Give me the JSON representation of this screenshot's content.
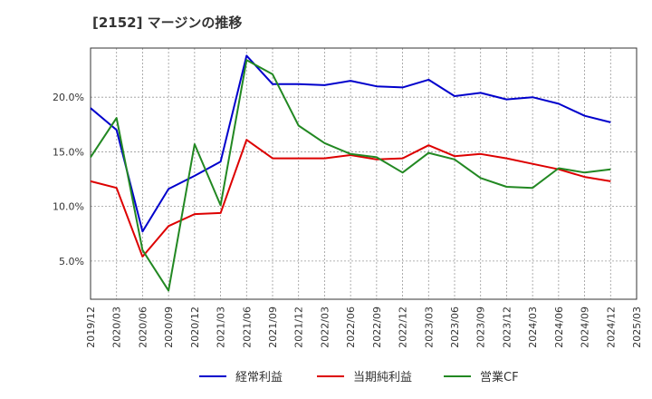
{
  "title": "[2152]  マージンの推移",
  "chart_data": {
    "type": "line",
    "title": "[2152]  マージンの推移",
    "xlabel": "",
    "ylabel": "",
    "x": [
      "2019/12",
      "2020/03",
      "2020/06",
      "2020/09",
      "2020/12",
      "2021/03",
      "2021/06",
      "2021/09",
      "2021/12",
      "2022/03",
      "2022/06",
      "2022/09",
      "2022/12",
      "2023/03",
      "2023/06",
      "2023/09",
      "2023/12",
      "2024/03",
      "2024/06",
      "2024/09",
      "2024/12",
      "2025/03"
    ],
    "y_ticks": [
      "5.0%",
      "10.0%",
      "15.0%",
      "20.0%"
    ],
    "y_tick_values": [
      5,
      10,
      15,
      20
    ],
    "ylim": [
      1.5,
      24.5
    ],
    "grid": true,
    "legend_position": "bottom",
    "series": [
      {
        "name": "経常利益",
        "color": "#0000cc",
        "values": [
          19.0,
          17.0,
          7.7,
          11.6,
          12.8,
          14.1,
          23.8,
          21.2,
          21.2,
          21.1,
          21.5,
          21.0,
          20.9,
          21.6,
          20.1,
          20.4,
          19.8,
          20.0,
          19.4,
          18.3,
          17.7,
          null
        ]
      },
      {
        "name": "当期純利益",
        "color": "#dd0000",
        "values": [
          12.3,
          11.7,
          5.4,
          8.2,
          9.3,
          9.4,
          16.1,
          14.4,
          14.4,
          14.4,
          14.7,
          14.3,
          14.4,
          15.6,
          14.6,
          14.8,
          14.4,
          13.9,
          13.4,
          12.7,
          12.3,
          null
        ]
      },
      {
        "name": "営業CF",
        "color": "#228822",
        "values": [
          14.5,
          18.1,
          6.0,
          2.3,
          15.7,
          10.1,
          23.4,
          22.1,
          17.4,
          15.8,
          14.8,
          14.5,
          13.1,
          14.9,
          14.3,
          12.6,
          11.8,
          11.7,
          13.5,
          13.1,
          13.4,
          null
        ]
      }
    ]
  }
}
